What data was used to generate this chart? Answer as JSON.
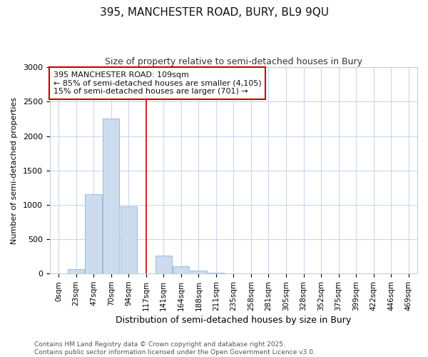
{
  "title": "395, MANCHESTER ROAD, BURY, BL9 9QU",
  "subtitle": "Size of property relative to semi-detached houses in Bury",
  "xlabel": "Distribution of semi-detached houses by size in Bury",
  "ylabel": "Number of semi-detached properties",
  "bar_color": "#ccdcee",
  "bar_edge_color": "#99bbdd",
  "background_color": "#ffffff",
  "grid_color": "#c8d8f0",
  "categories": [
    "0sqm",
    "23sqm",
    "47sqm",
    "70sqm",
    "94sqm",
    "117sqm",
    "141sqm",
    "164sqm",
    "188sqm",
    "211sqm",
    "235sqm",
    "258sqm",
    "281sqm",
    "305sqm",
    "328sqm",
    "352sqm",
    "375sqm",
    "399sqm",
    "422sqm",
    "446sqm",
    "469sqm"
  ],
  "values": [
    0,
    60,
    1150,
    2250,
    975,
    0,
    265,
    110,
    45,
    15,
    5,
    0,
    0,
    0,
    0,
    0,
    0,
    0,
    0,
    0,
    0
  ],
  "ylim": [
    0,
    3000
  ],
  "vline_index": 5,
  "vline_color": "#cc0000",
  "annotation_line1": "395 MANCHESTER ROAD: 109sqm",
  "annotation_line2": "← 85% of semi-detached houses are smaller (4,105)",
  "annotation_line3": "15% of semi-detached houses are larger (701) →",
  "annotation_box_color": "#cc0000",
  "footer_line1": "Contains HM Land Registry data © Crown copyright and database right 2025.",
  "footer_line2": "Contains public sector information licensed under the Open Government Licence v3.0."
}
